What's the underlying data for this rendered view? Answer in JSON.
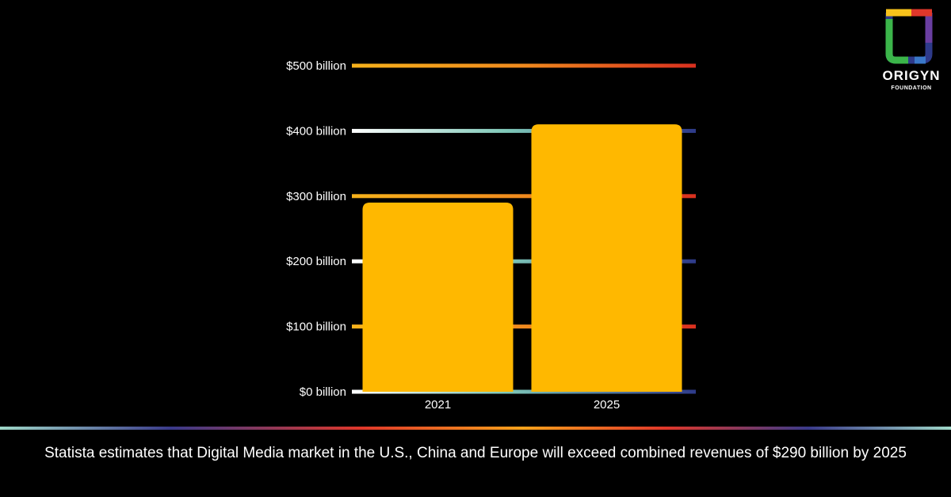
{
  "chart_data": {
    "type": "bar",
    "categories": [
      "2021",
      "2025"
    ],
    "values": [
      290,
      410
    ],
    "y_ticks": [
      "$0 billion",
      "$100 billion",
      "$200 billion",
      "$300 billion",
      "$400 billion",
      "$500 billion"
    ],
    "y_tick_values": [
      0,
      100,
      200,
      300,
      400,
      500
    ],
    "ylim": [
      0,
      500
    ],
    "bar_color": "#FFB800",
    "grid": true,
    "title": "",
    "xlabel": "",
    "ylabel": ""
  },
  "caption": "Statista estimates that Digital Media market in the U.S., China and Europe will exceed combined revenues of $290 billion by 2025",
  "logo": {
    "icon": "origyn-logo-icon",
    "name": "ORIGYN",
    "subtitle": "FOUNDATION"
  },
  "colors": {
    "background": "#000000",
    "bar": "#FFB800",
    "grid_warm_start": "#F7B21B",
    "grid_warm_end": "#D9301F",
    "grid_cool_start": "#FFFFFF",
    "grid_cool_mid": "#7FC8B8",
    "grid_cool_end": "#2E3A8A"
  }
}
